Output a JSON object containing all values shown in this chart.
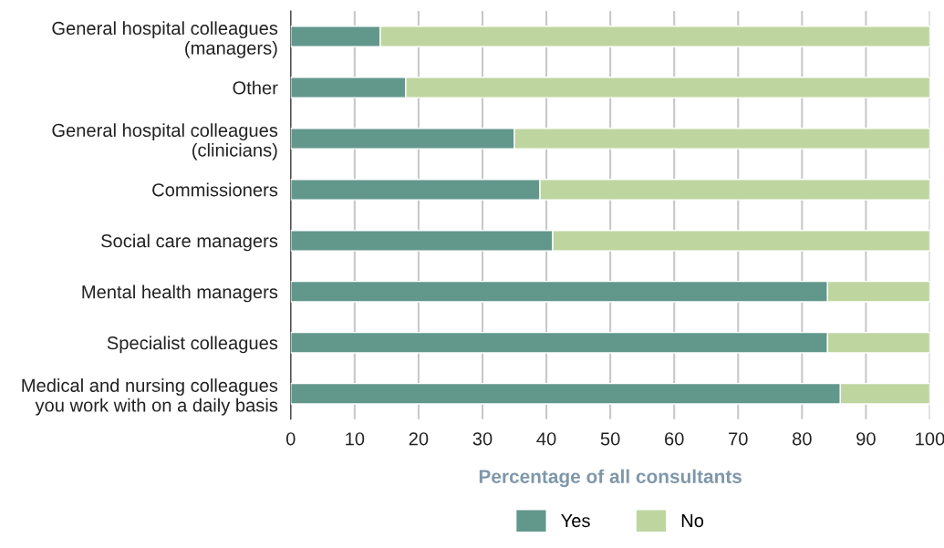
{
  "chart_data": {
    "type": "bar",
    "orientation": "horizontal",
    "stacked": true,
    "categories": [
      "General hospital colleagues\n(managers)",
      "Other",
      "General hospital colleagues\n(clinicians)",
      "Commissioners",
      "Social care managers",
      "Mental health managers",
      "Specialist colleagues",
      "Medical and nursing colleagues\nyou work with on a daily basis"
    ],
    "series": [
      {
        "name": "Yes",
        "color": "#62978c",
        "values": [
          14,
          18,
          35,
          39,
          41,
          84,
          84,
          86
        ]
      },
      {
        "name": "No",
        "color": "#bed5a0",
        "values": [
          86,
          82,
          65,
          61,
          59,
          16,
          16,
          14
        ]
      }
    ],
    "xlabel": "Percentage of all consultants",
    "xlim": [
      0,
      100
    ],
    "xticks": [
      0,
      10,
      20,
      30,
      40,
      50,
      60,
      70,
      80,
      90,
      100
    ],
    "grid": "x",
    "legend": "bottom"
  }
}
